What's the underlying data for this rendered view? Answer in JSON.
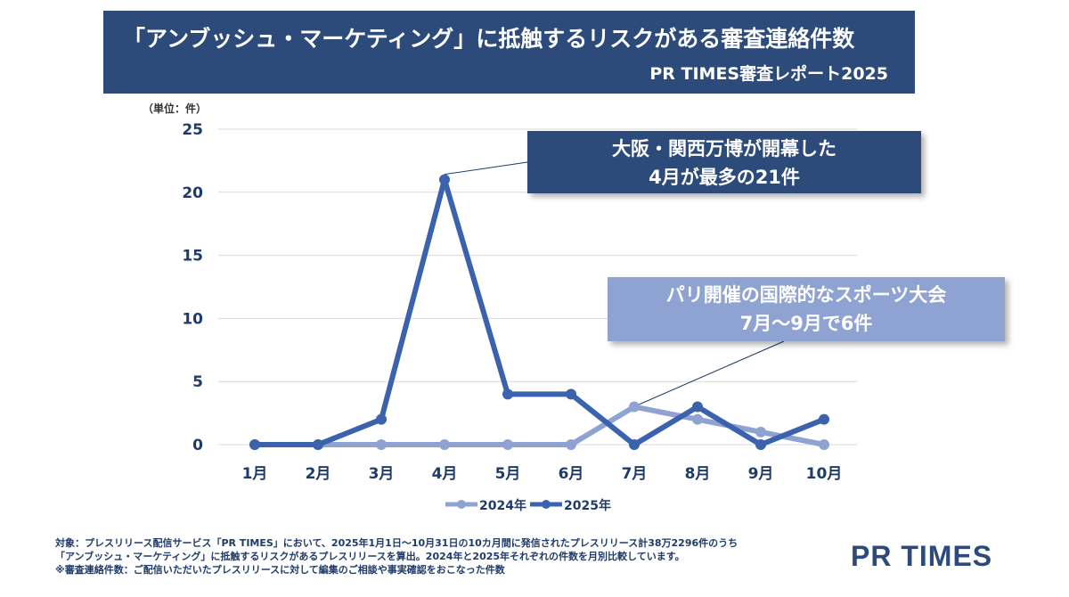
{
  "header": {
    "title": "「アンブッシュ・マーケティング」に抵触するリスクがある審査連絡件数",
    "subtitle": "PR TIMES審査レポート2025"
  },
  "unit_label": "（単位：件）",
  "callouts": {
    "main": [
      "大阪・関西万博が開幕した",
      "4月が最多の21件"
    ],
    "sub": [
      "パリ開催の国際的なスポーツ大会",
      "7月〜9月で6件"
    ]
  },
  "chart_data": {
    "type": "line",
    "categories": [
      "1月",
      "2月",
      "3月",
      "4月",
      "5月",
      "6月",
      "7月",
      "8月",
      "9月",
      "10月"
    ],
    "series": [
      {
        "name": "2024年",
        "color": "#8fa3d3",
        "values": [
          0,
          0,
          0,
          0,
          0,
          0,
          3,
          2,
          1,
          0
        ]
      },
      {
        "name": "2025年",
        "color": "#3a62ad",
        "values": [
          0,
          0,
          2,
          21,
          4,
          4,
          0,
          3,
          0,
          2
        ]
      }
    ],
    "ylim": [
      0,
      25
    ],
    "yticks": [
      0,
      5,
      10,
      15,
      20,
      25
    ],
    "grid": true,
    "legend": "bottom"
  },
  "footnotes": [
    "対象：プレスリリース配信サービス「PR TIMES」において、2025年1月1日〜10月31日の10カ月間に発信されたプレスリリース計38万2296件のうち",
    "「アンブッシュ・マーケティング」に抵触するリスクがあるプレスリリースを算出。2024年と2025年それぞれの件数を月別比較しています。",
    "※審査連絡件数：ご配信いただいたプレスリリースに対して編集のご相談や事実確認をおこなった件数"
  ],
  "logo": "PR TIMES"
}
